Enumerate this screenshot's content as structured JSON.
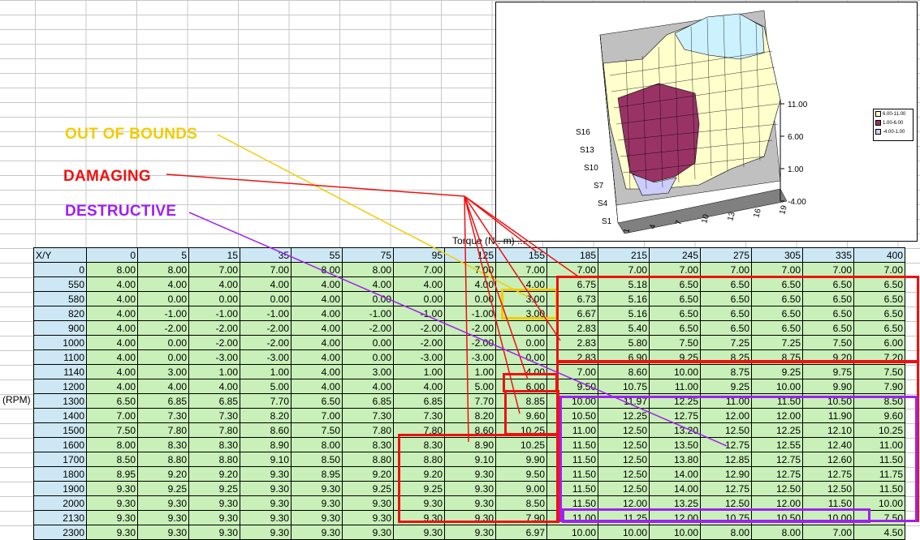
{
  "annotations": {
    "out_of_bounds": "OUT OF BOUNDS",
    "damaging": "DAMAGING",
    "destructive": "DESTRUCTIVE"
  },
  "colors": {
    "out_of_bounds": "#f2cc00",
    "damaging": "#ee1111",
    "destructive": "#a020f0",
    "header_fill": "#cde8f4",
    "value_fill": "#c8f0b8"
  },
  "axis_labels": {
    "rpm": "(RPM)",
    "torque": "Torque (N . m) ..."
  },
  "table": {
    "corner": "X/Y",
    "columns": [
      "0",
      "5",
      "15",
      "35",
      "55",
      "75",
      "95",
      "125",
      "155",
      "185",
      "215",
      "245",
      "275",
      "305",
      "335",
      "400"
    ],
    "rows": [
      {
        "rpm": "0",
        "values": [
          "8.00",
          "8.00",
          "7.00",
          "7.00",
          "8.00",
          "8.00",
          "7.00",
          "7.00",
          "7.00",
          "7.00",
          "7.00",
          "7.00",
          "7.00",
          "7.00",
          "7.00",
          "7.00"
        ]
      },
      {
        "rpm": "550",
        "values": [
          "4.00",
          "4.00",
          "4.00",
          "4.00",
          "4.00",
          "4.00",
          "4.00",
          "4.00",
          "4.00",
          "6.75",
          "5.18",
          "6.50",
          "6.50",
          "6.50",
          "6.50",
          "6.50"
        ]
      },
      {
        "rpm": "580",
        "values": [
          "4.00",
          "0.00",
          "0.00",
          "0.00",
          "4.00",
          "0.00",
          "0.00",
          "0.00",
          "3.00",
          "6.73",
          "5.16",
          "6.50",
          "6.50",
          "6.50",
          "6.50",
          "6.50"
        ]
      },
      {
        "rpm": "820",
        "values": [
          "4.00",
          "-1.00",
          "-1.00",
          "-1.00",
          "4.00",
          "-1.00",
          "-1.00",
          "-1.00",
          "3.00",
          "6.67",
          "5.16",
          "6.50",
          "6.50",
          "6.50",
          "6.50",
          "6.50"
        ]
      },
      {
        "rpm": "900",
        "values": [
          "4.00",
          "-2.00",
          "-2.00",
          "-2.00",
          "4.00",
          "-2.00",
          "-2.00",
          "-2.00",
          "0.00",
          "2.83",
          "5.40",
          "6.50",
          "6.50",
          "6.50",
          "6.50",
          "6.50"
        ]
      },
      {
        "rpm": "1000",
        "values": [
          "4.00",
          "0.00",
          "-2.00",
          "-2.00",
          "4.00",
          "0.00",
          "-2.00",
          "-2.00",
          "0.00",
          "2.83",
          "5.80",
          "7.50",
          "7.25",
          "7.25",
          "7.50",
          "6.00"
        ]
      },
      {
        "rpm": "1100",
        "values": [
          "4.00",
          "0.00",
          "-3.00",
          "-3.00",
          "4.00",
          "0.00",
          "-3.00",
          "-3.00",
          "0.00",
          "2.83",
          "6.90",
          "9.25",
          "8.25",
          "8.75",
          "9.20",
          "7.20"
        ]
      },
      {
        "rpm": "1140",
        "values": [
          "4.00",
          "3.00",
          "1.00",
          "1.00",
          "4.00",
          "3.00",
          "1.00",
          "1.00",
          "4.00",
          "7.00",
          "8.60",
          "10.00",
          "8.75",
          "9.25",
          "9.75",
          "7.50"
        ]
      },
      {
        "rpm": "1200",
        "values": [
          "4.00",
          "4.00",
          "4.00",
          "5.00",
          "4.00",
          "4.00",
          "4.00",
          "5.00",
          "6.00",
          "9.50",
          "10.75",
          "11.00",
          "9.25",
          "10.00",
          "9.90",
          "7.90"
        ]
      },
      {
        "rpm": "1300",
        "values": [
          "6.50",
          "6.85",
          "6.85",
          "7.70",
          "6.50",
          "6.85",
          "6.85",
          "7.70",
          "8.85",
          "10.00",
          "11.97",
          "12.25",
          "11.00",
          "11.50",
          "10.50",
          "8.50"
        ]
      },
      {
        "rpm": "1400",
        "values": [
          "7.00",
          "7.30",
          "7.30",
          "8.20",
          "7.00",
          "7.30",
          "7.30",
          "8.20",
          "9.60",
          "10.50",
          "12.25",
          "12.75",
          "12.00",
          "12.00",
          "11.90",
          "9.60"
        ]
      },
      {
        "rpm": "1500",
        "values": [
          "7.50",
          "7.80",
          "7.80",
          "8.60",
          "7.50",
          "7.80",
          "7.80",
          "8.60",
          "10.25",
          "11.00",
          "12.50",
          "13.20",
          "12.50",
          "12.25",
          "12.10",
          "10.25"
        ]
      },
      {
        "rpm": "1600",
        "values": [
          "8.00",
          "8.30",
          "8.30",
          "8.90",
          "8.00",
          "8.30",
          "8.30",
          "8.90",
          "10.25",
          "11.50",
          "12.50",
          "13.50",
          "12.75",
          "12.55",
          "12.40",
          "11.00"
        ]
      },
      {
        "rpm": "1700",
        "values": [
          "8.50",
          "8.80",
          "8.80",
          "9.10",
          "8.50",
          "8.80",
          "8.80",
          "9.10",
          "9.90",
          "11.50",
          "12.50",
          "13.80",
          "12.85",
          "12.75",
          "12.60",
          "11.50"
        ]
      },
      {
        "rpm": "1800",
        "values": [
          "8.95",
          "9.20",
          "9.20",
          "9.30",
          "8.95",
          "9.20",
          "9.20",
          "9.30",
          "9.50",
          "11.50",
          "12.50",
          "14.00",
          "12.90",
          "12.75",
          "12.75",
          "11.75"
        ]
      },
      {
        "rpm": "1900",
        "values": [
          "9.30",
          "9.25",
          "9.25",
          "9.30",
          "9.30",
          "9.25",
          "9.25",
          "9.30",
          "9.00",
          "11.50",
          "12.50",
          "14.00",
          "12.75",
          "12.50",
          "12.50",
          "11.50"
        ]
      },
      {
        "rpm": "2000",
        "values": [
          "9.30",
          "9.30",
          "9.30",
          "9.30",
          "9.30",
          "9.30",
          "9.30",
          "9.30",
          "8.50",
          "11.50",
          "12.00",
          "13.25",
          "12.50",
          "12.00",
          "11.50",
          "10.00"
        ]
      },
      {
        "rpm": "2130",
        "values": [
          "9.30",
          "9.30",
          "9.30",
          "9.30",
          "9.30",
          "9.30",
          "9.30",
          "9.30",
          "7.90",
          "11.00",
          "11.25",
          "12.00",
          "10.75",
          "10.50",
          "10.00",
          "7.50"
        ]
      },
      {
        "rpm": "2300",
        "values": [
          "9.30",
          "9.30",
          "9.30",
          "9.30",
          "9.30",
          "9.30",
          "9.30",
          "9.30",
          "6.97",
          "10.00",
          "10.00",
          "10.00",
          "8.00",
          "8.00",
          "7.00",
          "4.50"
        ]
      }
    ]
  },
  "chart": {
    "z_ticks": [
      "11.00",
      "6.00",
      "1.00",
      "-4.00"
    ],
    "series_ticks": [
      "S16",
      "S13",
      "S10",
      "S7",
      "S4",
      "S1"
    ],
    "x_ticks": [
      "1",
      "4",
      "7",
      "10",
      "13",
      "16",
      "19"
    ],
    "legend": [
      {
        "label": "6.00-11.00",
        "color": "#ffffcc"
      },
      {
        "label": "1.00-6.00",
        "color": "#993366"
      },
      {
        "label": "-4.00-1.00",
        "color": "#ccccff"
      }
    ]
  }
}
